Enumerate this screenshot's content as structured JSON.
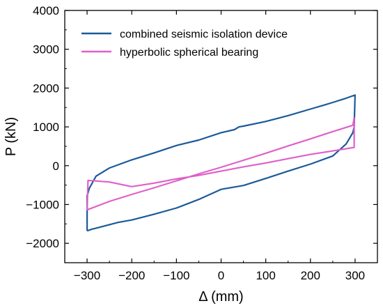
{
  "chart_data": {
    "type": "line",
    "title": "",
    "xlabel": "Δ (mm)",
    "ylabel": "P (kN)",
    "xlim": [
      -350,
      350
    ],
    "ylim": [
      -2500,
      4000
    ],
    "xticks": [
      -300,
      -200,
      -100,
      0,
      100,
      200,
      300
    ],
    "yticks": [
      -2000,
      -1000,
      0,
      1000,
      2000,
      3000,
      4000
    ],
    "xtick_labels": [
      "−300",
      "−200",
      "−100",
      "0",
      "100",
      "200",
      "300"
    ],
    "ytick_labels": [
      "−2000",
      "−1000",
      "0",
      "1000",
      "2000",
      "3000",
      "4000"
    ],
    "grid": false,
    "legend_position": "top-left",
    "series": [
      {
        "name": "combined seismic isolation device",
        "color": "#1a5a99",
        "x": [
          -300,
          -298,
          -290,
          -270,
          -250,
          -230,
          -200,
          -150,
          -100,
          -50,
          0,
          50,
          100,
          150,
          200,
          250,
          280,
          295,
          298,
          300,
          300,
          298,
          295,
          280,
          250,
          230,
          200,
          150,
          100,
          50,
          40,
          30,
          0,
          -50,
          -100,
          -150,
          -200,
          -250,
          -280,
          -295,
          -300,
          -300
        ],
        "y": [
          -1680,
          -1670,
          -1640,
          -1580,
          -1520,
          -1460,
          -1400,
          -1250,
          -1090,
          -870,
          -610,
          -510,
          -330,
          -140,
          40,
          250,
          560,
          850,
          1000,
          1820,
          1820,
          1810,
          1800,
          1740,
          1630,
          1560,
          1460,
          1290,
          1140,
          1020,
          1000,
          930,
          850,
          660,
          520,
          330,
          150,
          -60,
          -270,
          -580,
          -780,
          -1680
        ]
      },
      {
        "name": "hyperbolic spherical bearing",
        "color": "#e060c8",
        "x": [
          -300,
          -298,
          -250,
          -200,
          -150,
          -100,
          -50,
          0,
          50,
          100,
          150,
          200,
          250,
          295,
          298,
          298,
          250,
          200,
          150,
          100,
          50,
          0,
          -50,
          -100,
          -150,
          -200,
          -250,
          -298,
          -300
        ],
        "y": [
          -1150,
          -1130,
          -920,
          -740,
          -570,
          -390,
          -210,
          -40,
          140,
          320,
          510,
          690,
          880,
          1040,
          1230,
          470,
          380,
          290,
          180,
          70,
          -30,
          -140,
          -250,
          -340,
          -450,
          -540,
          -420,
          -380,
          -1150
        ]
      }
    ]
  }
}
